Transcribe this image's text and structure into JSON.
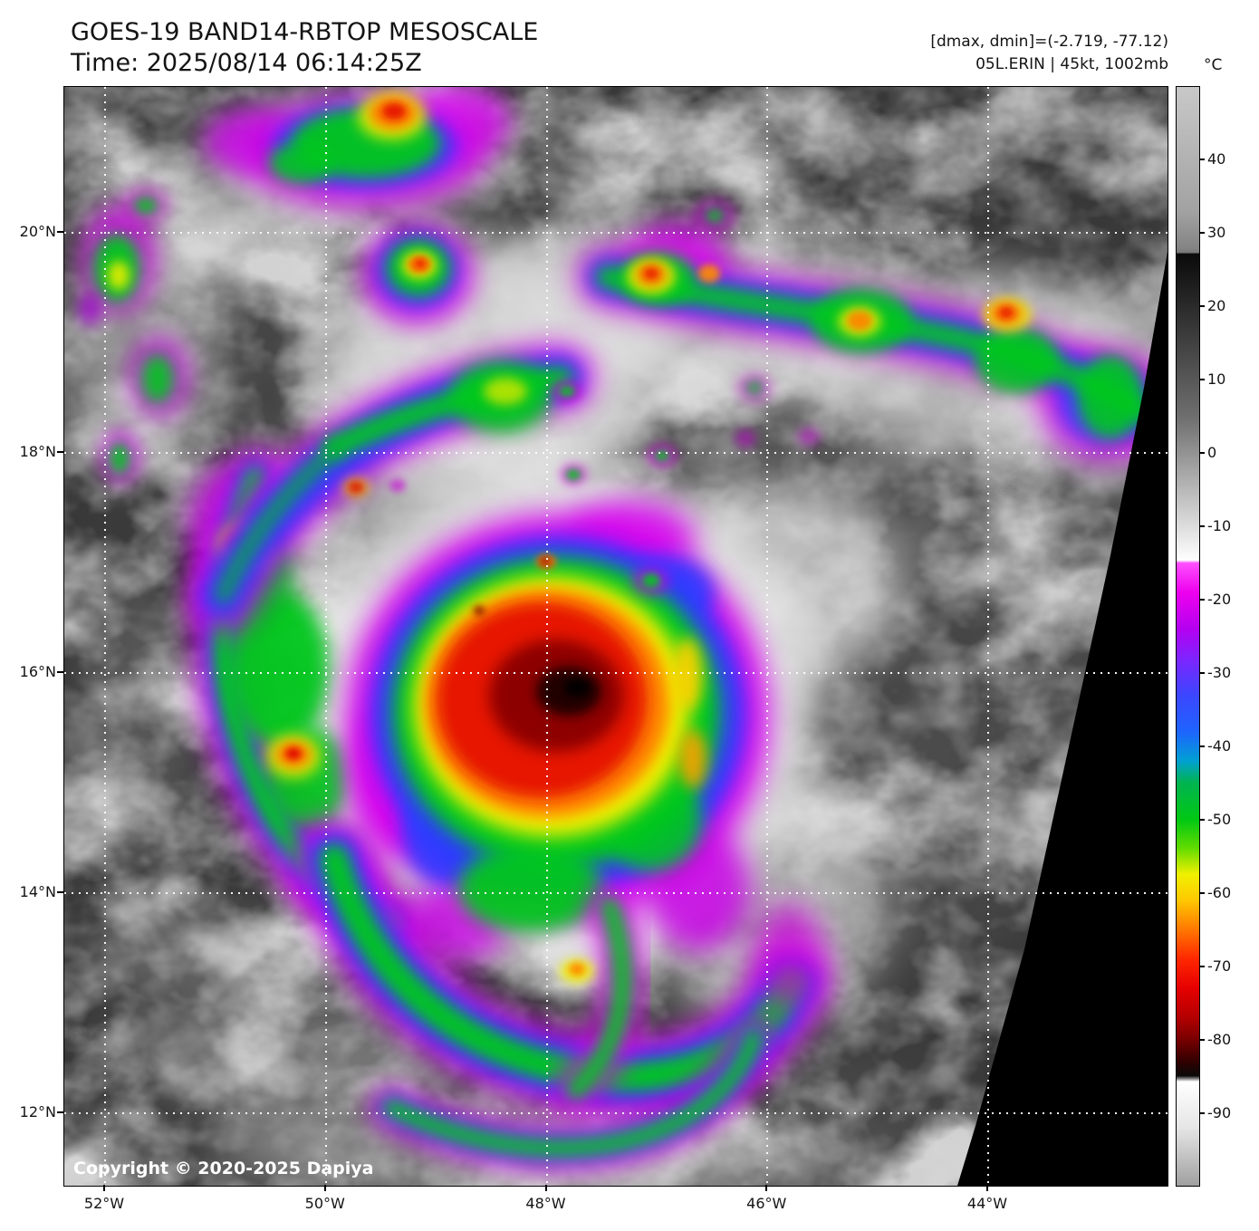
{
  "header": {
    "title": "GOES-19 BAND14-RBTOP MESOSCALE",
    "time_label": "Time: 2025/08/14 06:14:25Z",
    "range_label": "[dmax, dmin]=(-2.719, -77.12)",
    "storm_label": "05L.ERIN | 45kt, 1002mb"
  },
  "colorbar": {
    "unit": "°C",
    "domain": [
      50,
      -100
    ],
    "tick_values": [
      40,
      30,
      20,
      10,
      0,
      -10,
      -20,
      -30,
      -40,
      -50,
      -60,
      -70,
      -80,
      -90
    ],
    "stops": [
      {
        "v": 50,
        "c": "#c8c8c8"
      },
      {
        "v": 33,
        "c": "#a2a2a2"
      },
      {
        "v": 28,
        "c": "#848484"
      },
      {
        "v": 27.4,
        "c": "#787878"
      },
      {
        "v": 27.2,
        "c": "#0a0a0a"
      },
      {
        "v": 5,
        "c": "#6e6e6e"
      },
      {
        "v": -14.6,
        "c": "#ffffff"
      },
      {
        "v": -15,
        "c": "#ff50ff"
      },
      {
        "v": -19,
        "c": "#ee00ee"
      },
      {
        "v": -24,
        "c": "#b400f0"
      },
      {
        "v": -28.5,
        "c": "#7828ff"
      },
      {
        "v": -33,
        "c": "#3c46ff"
      },
      {
        "v": -38,
        "c": "#1e64ff"
      },
      {
        "v": -42,
        "c": "#00a0d2"
      },
      {
        "v": -45,
        "c": "#00b450"
      },
      {
        "v": -50,
        "c": "#00c814"
      },
      {
        "v": -54,
        "c": "#64dc00"
      },
      {
        "v": -57.5,
        "c": "#f0f000"
      },
      {
        "v": -61,
        "c": "#ffc800"
      },
      {
        "v": -65,
        "c": "#ff7800"
      },
      {
        "v": -69,
        "c": "#ff2800"
      },
      {
        "v": -73,
        "c": "#e60000"
      },
      {
        "v": -77,
        "c": "#b40000"
      },
      {
        "v": -80,
        "c": "#780000"
      },
      {
        "v": -83,
        "c": "#320000"
      },
      {
        "v": -85,
        "c": "#0a0a0a"
      },
      {
        "v": -85.8,
        "c": "#ffffff"
      },
      {
        "v": -92,
        "c": "#e6e6e6"
      },
      {
        "v": -100,
        "c": "#a0a0a0"
      }
    ]
  },
  "map": {
    "copyright": "Copyright © 2020-2025 Dapiya",
    "lat_ticks": [
      {
        "deg": 20,
        "label": "20°N"
      },
      {
        "deg": 18,
        "label": "18°N"
      },
      {
        "deg": 16,
        "label": "16°N"
      },
      {
        "deg": 14,
        "label": "14°N"
      },
      {
        "deg": 12,
        "label": "12°N"
      }
    ],
    "lon_ticks": [
      {
        "deg": 52,
        "label": "52°W"
      },
      {
        "deg": 50,
        "label": "50°W"
      },
      {
        "deg": 48,
        "label": "48°W"
      },
      {
        "deg": 46,
        "label": "46°W"
      },
      {
        "deg": 44,
        "label": "44°W"
      }
    ]
  }
}
